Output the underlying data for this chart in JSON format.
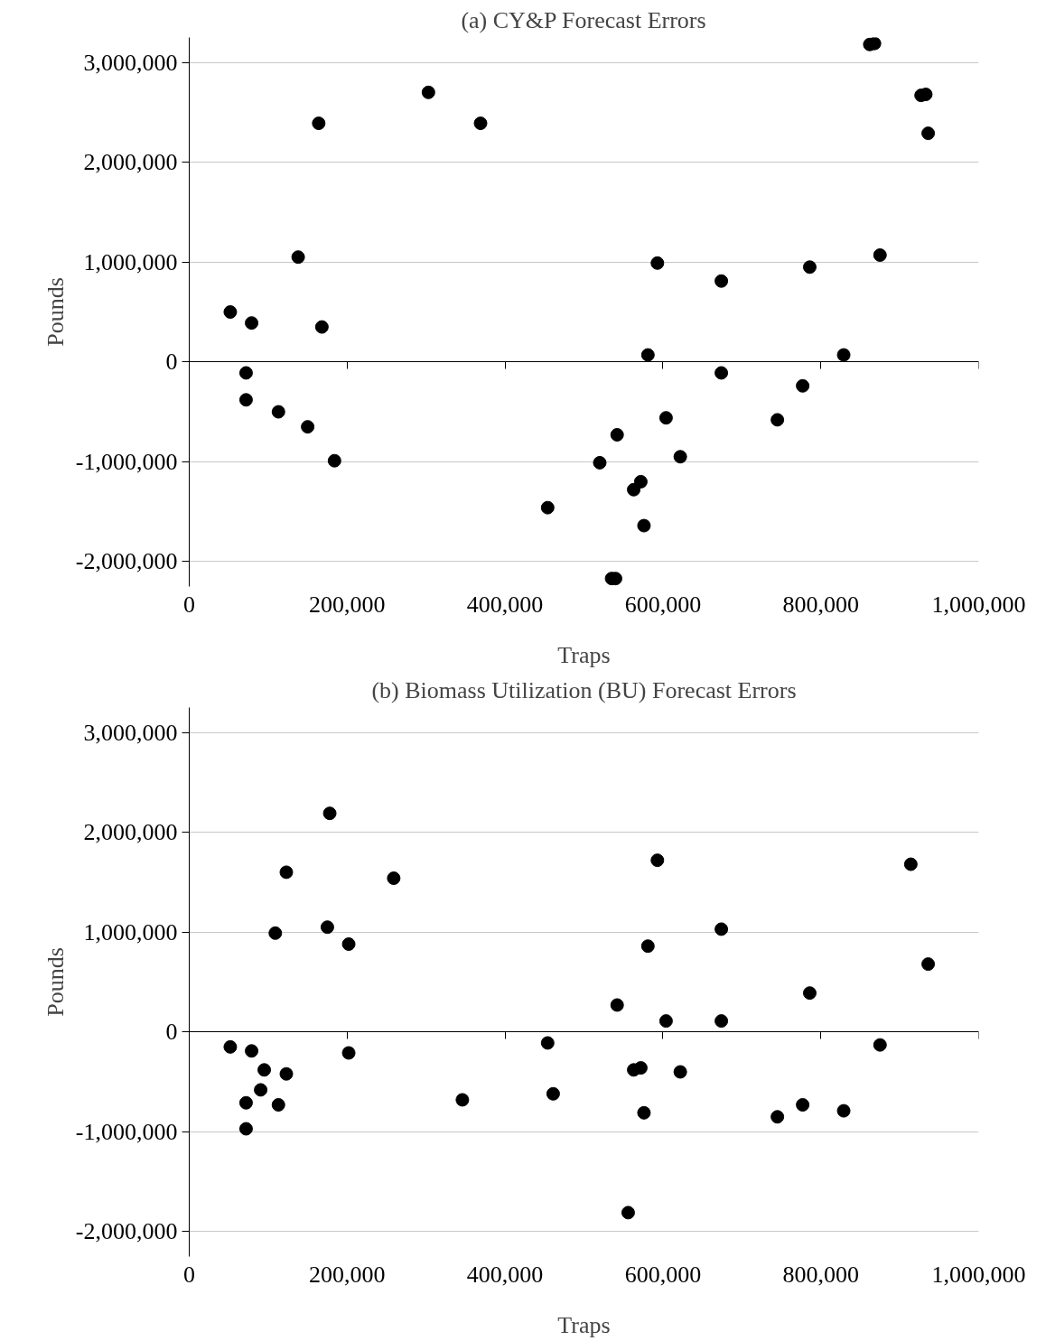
{
  "chart_data": [
    {
      "type": "scatter",
      "title": "(a) CY&P Forecast Errors",
      "xlabel": "Traps",
      "ylabel": "Pounds",
      "marker": "circle",
      "grid": "y",
      "xlim": [
        0,
        1000000
      ],
      "ylim": [
        -2250000,
        3250000
      ],
      "xticks": [
        0,
        {
          "value": 200000,
          "label": "200,000"
        },
        {
          "value": 400000,
          "label": "400,000"
        },
        {
          "value": 600000,
          "label": "600,000"
        },
        {
          "value": 800000,
          "label": "800,000"
        },
        {
          "value": 1000000,
          "label": "1,000,000"
        }
      ],
      "yticks": [
        {
          "value": -2000000,
          "label": "-2,000,000"
        },
        {
          "value": -1000000,
          "label": "-1,000,000"
        },
        0,
        {
          "value": 1000000,
          "label": "1,000,000"
        },
        {
          "value": 2000000,
          "label": "2,000,000"
        },
        {
          "value": 3000000,
          "label": "3,000,000"
        }
      ],
      "series": [
        {
          "color": "#000000",
          "x": [
            52000,
            79000,
            72000,
            72000,
            113000,
            138000,
            150000,
            164000,
            168000,
            184000,
            303000,
            369000,
            454000,
            520000,
            542000,
            535000,
            540000,
            563000,
            572000,
            576000,
            581000,
            593000,
            604000,
            622000,
            674000,
            674000,
            745000,
            777000,
            786000,
            829000,
            875000,
            862000,
            868000,
            927000,
            933000,
            936000
          ],
          "values": [
            500000,
            390000,
            -110000,
            -380000,
            -500000,
            1050000,
            -650000,
            2390000,
            350000,
            -990000,
            2700000,
            2390000,
            -1460000,
            -1010000,
            -730000,
            -2170000,
            -2170000,
            -1280000,
            -1200000,
            -1640000,
            70000,
            990000,
            -560000,
            -950000,
            810000,
            -110000,
            -580000,
            -240000,
            950000,
            70000,
            1070000,
            3180000,
            3190000,
            2670000,
            2680000,
            2290000
          ]
        }
      ]
    },
    {
      "type": "scatter",
      "title": "(b) Biomass Utilization (BU) Forecast Errors",
      "xlabel": "Traps",
      "ylabel": "Pounds",
      "marker": "circle",
      "grid": "y",
      "xlim": [
        0,
        1000000
      ],
      "ylim": [
        -2250000,
        3250000
      ],
      "xticks": [
        0,
        {
          "value": 200000,
          "label": "200,000"
        },
        {
          "value": 400000,
          "label": "400,000"
        },
        {
          "value": 600000,
          "label": "600,000"
        },
        {
          "value": 800000,
          "label": "800,000"
        },
        {
          "value": 1000000,
          "label": "1,000,000"
        }
      ],
      "yticks": [
        {
          "value": -2000000,
          "label": "-2,000,000"
        },
        {
          "value": -1000000,
          "label": "-1,000,000"
        },
        0,
        {
          "value": 1000000,
          "label": "1,000,000"
        },
        {
          "value": 2000000,
          "label": "2,000,000"
        },
        {
          "value": 3000000,
          "label": "3,000,000"
        }
      ],
      "series": [
        {
          "color": "#000000",
          "x": [
            52000,
            79000,
            72000,
            72000,
            90500,
            95000,
            113000,
            109000,
            123000,
            123000,
            175000,
            178000,
            202000,
            202000,
            259000,
            346000,
            454000,
            461000,
            542000,
            556000,
            563000,
            572000,
            576000,
            581000,
            593000,
            604000,
            622000,
            674000,
            674000,
            745000,
            777000,
            786000,
            829000,
            875000,
            914000,
            936000
          ],
          "values": [
            -150000,
            -190000,
            -710000,
            -970000,
            -580000,
            -380000,
            -730000,
            990000,
            1600000,
            -420000,
            1050000,
            2190000,
            880000,
            -210000,
            1540000,
            -680000,
            -110000,
            -620000,
            270000,
            -1810000,
            -380000,
            -360000,
            -810000,
            860000,
            1720000,
            110000,
            -400000,
            1030000,
            110000,
            -850000,
            -730000,
            390000,
            -790000,
            -130000,
            1680000,
            680000
          ]
        }
      ]
    }
  ]
}
